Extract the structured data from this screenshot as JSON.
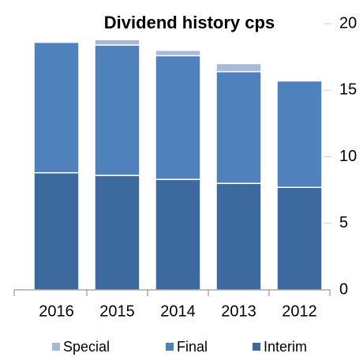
{
  "chart_data": {
    "type": "bar",
    "stacked": true,
    "title": "Dividend history cps",
    "categories": [
      "2016",
      "2015",
      "2014",
      "2013",
      "2012"
    ],
    "series": [
      {
        "name": "Special",
        "color": "#a6b9d9",
        "values": [
          0,
          0.4,
          0.4,
          0.6,
          0
        ]
      },
      {
        "name": "Final",
        "color": "#4f81bd",
        "values": [
          9.8,
          9.8,
          9.3,
          8.4,
          8.0
        ]
      },
      {
        "name": "Interim",
        "color": "#3d6a9e",
        "values": [
          8.8,
          8.6,
          8.3,
          8.0,
          7.7
        ]
      }
    ],
    "ylim": [
      0,
      20
    ],
    "yticks": [
      0,
      5,
      10,
      15,
      20
    ],
    "y_axis_side": "right",
    "grid": false,
    "legend": "bottom"
  }
}
